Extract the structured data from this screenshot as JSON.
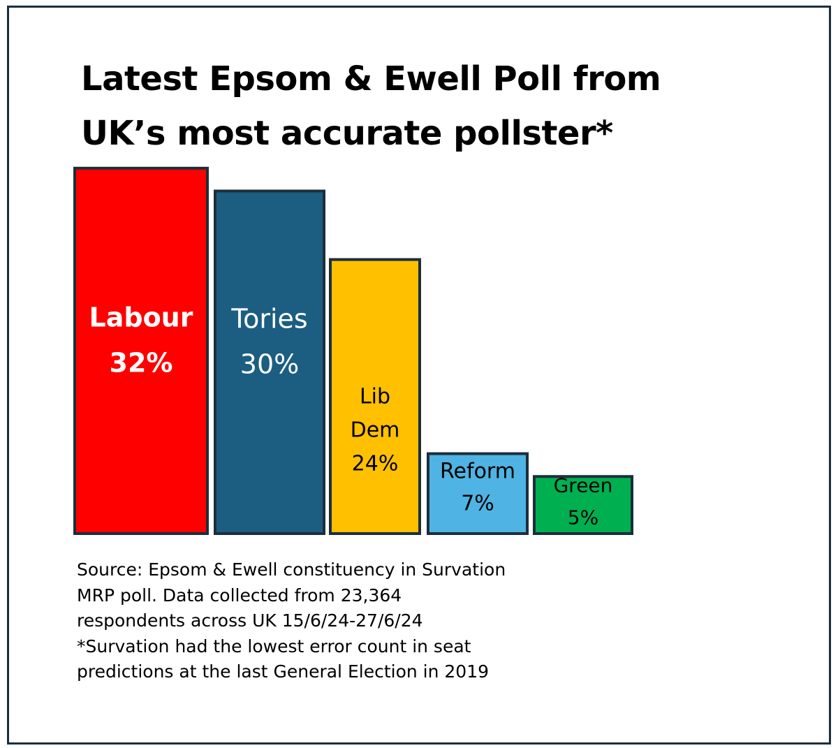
{
  "title": {
    "line1": "Latest Epsom & Ewell Poll from",
    "line2": "UK’s most accurate pollster*"
  },
  "source": {
    "line1": "Source: Epsom & Ewell constituency in Survation",
    "line2": "MRP poll. Data collected from 23,364",
    "line3": "respondents across UK 15/6/24-27/6/24",
    "line4": "*Survation had the lowest error count in seat",
    "line5": "predictions at the last General Election in 2019"
  },
  "chart_data": {
    "type": "bar",
    "categories": [
      "Labour",
      "Tories",
      "Lib Dem",
      "Reform",
      "Green"
    ],
    "values": [
      32,
      30,
      24,
      7,
      5
    ],
    "value_labels": [
      "32%",
      "30%",
      "24%",
      "7%",
      "5%"
    ],
    "label_lines": [
      [
        "Labour",
        "32%"
      ],
      [
        "Tories",
        "30%"
      ],
      [
        "Lib",
        "Dem",
        "24%"
      ],
      [
        "Reform",
        "7%"
      ],
      [
        "Green",
        "5%"
      ]
    ],
    "colors": [
      "#ff0000",
      "#1b5e82",
      "#ffc000",
      "#4fb3e3",
      "#00b050"
    ],
    "label_colors": [
      "#ffffff",
      "#ffffff",
      "#000000",
      "#000000",
      "#000000"
    ],
    "border_color": "#1c2e3b",
    "grid": false,
    "legend": "none"
  }
}
